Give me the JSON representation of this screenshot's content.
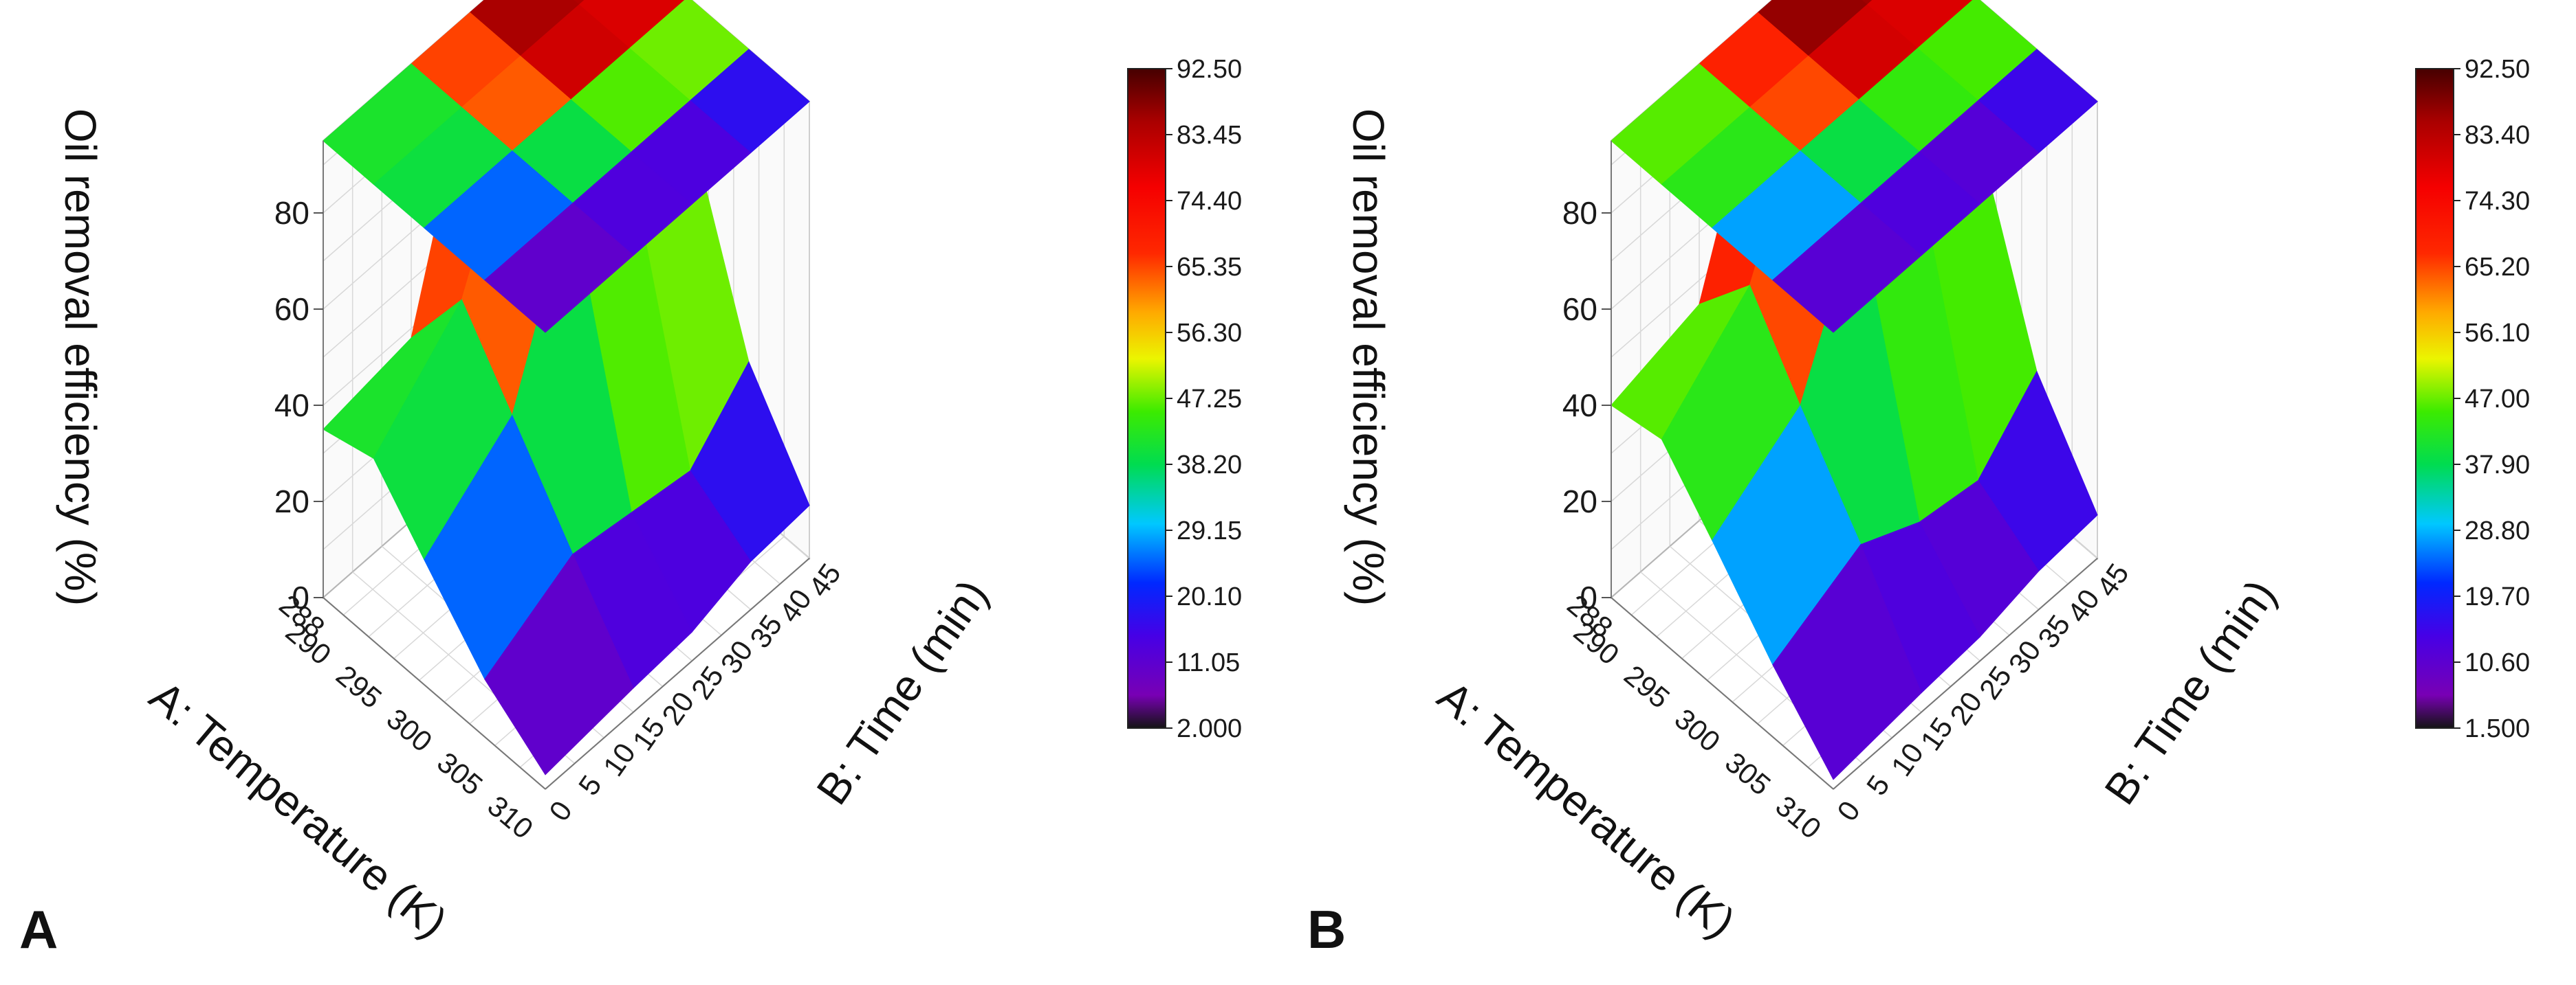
{
  "chart_data": [
    {
      "type": "surface3d",
      "panel_label": "A",
      "zlabel": "Oil removal efficiency (%)",
      "xlabel": "A: Temperature (K)",
      "ylabel": "B: Time (min)",
      "xlim": [
        288,
        310
      ],
      "ylim": [
        0,
        45
      ],
      "zlim": [
        0,
        95
      ],
      "x_ticks": [
        "290",
        "295",
        "300",
        "305",
        "310"
      ],
      "x_tick_partial": "288",
      "y_ticks": [
        "0",
        "5",
        "10",
        "15",
        "20",
        "25",
        "30",
        "35",
        "40",
        "45"
      ],
      "z_ticks": [
        "0",
        "20",
        "40",
        "60",
        "80"
      ],
      "colorbar": {
        "min": 2.0,
        "max": 92.5,
        "tick_labels": [
          "92.50",
          "83.45",
          "74.40",
          "65.35",
          "56.30",
          "47.25",
          "38.20",
          "29.15",
          "20.10",
          "11.05",
          "2.000"
        ]
      },
      "x": [
        288,
        293,
        298,
        304,
        310
      ],
      "y": [
        0,
        15,
        25,
        35,
        45
      ],
      "z": [
        [
          35,
          38,
          83,
          82,
          80
        ],
        [
          38,
          55,
          86,
          90,
          86
        ],
        [
          26,
          40,
          75,
          72,
          70
        ],
        [
          12,
          22,
          20,
          18,
          30
        ],
        [
          3,
          5,
          6,
          10,
          11
        ]
      ],
      "projection": "top contour map"
    },
    {
      "type": "surface3d",
      "panel_label": "B",
      "zlabel": "Oil removal efficiency (%)",
      "xlabel": "A: Temperature (K)",
      "ylabel": "B: Time (min)",
      "xlim": [
        288,
        310
      ],
      "ylim": [
        0,
        45
      ],
      "zlim": [
        0,
        95
      ],
      "x_ticks": [
        "290",
        "295",
        "300",
        "305",
        "310"
      ],
      "x_tick_partial": "288",
      "y_ticks": [
        "0",
        "5",
        "10",
        "15",
        "20",
        "25",
        "30",
        "35",
        "40",
        "45"
      ],
      "z_ticks": [
        "0",
        "20",
        "40",
        "60",
        "80"
      ],
      "colorbar": {
        "min": 1.5,
        "max": 92.5,
        "tick_labels": [
          "92.50",
          "83.40",
          "74.30",
          "65.20",
          "56.10",
          "47.00",
          "37.90",
          "28.80",
          "19.70",
          "10.60",
          "1.500"
        ]
      },
      "x": [
        288,
        293,
        298,
        304,
        310
      ],
      "y": [
        0,
        15,
        25,
        35,
        45
      ],
      "z": [
        [
          40,
          45,
          83,
          85,
          80
        ],
        [
          42,
          58,
          88,
          91,
          88
        ],
        [
          30,
          42,
          72,
          70,
          68
        ],
        [
          15,
          24,
          18,
          16,
          28
        ],
        [
          2,
          4,
          5,
          8,
          9
        ]
      ],
      "projection": "top contour map"
    }
  ]
}
